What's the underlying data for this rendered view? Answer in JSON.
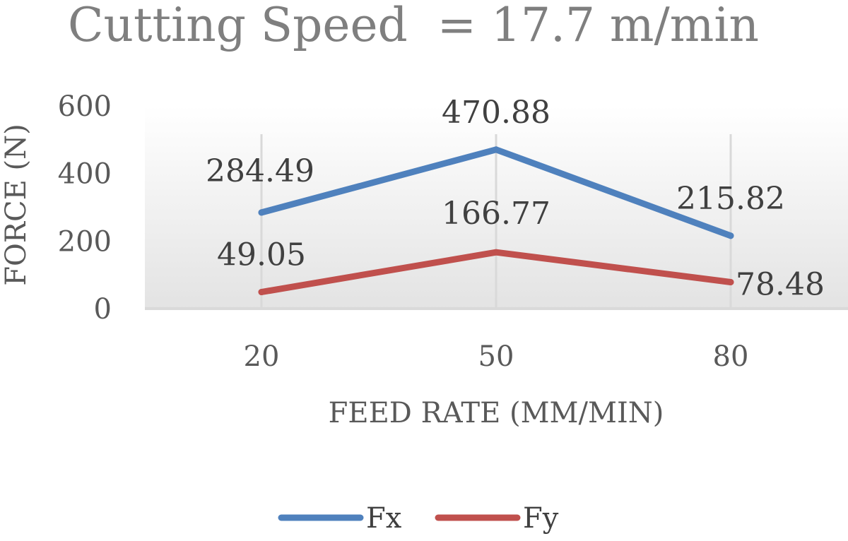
{
  "chart_data": {
    "type": "line",
    "title": "Cutting Speed  = 17.7 m/min",
    "xlabel": "FEED RATE (MM/MIN)",
    "ylabel": "FORCE (N)",
    "categories": [
      "20",
      "50",
      "80"
    ],
    "ylim": [
      0,
      600
    ],
    "yticks": [
      "0",
      "200",
      "400",
      "600"
    ],
    "grid": "vertical",
    "legend": "bottom",
    "series": [
      {
        "name": "Fx",
        "color": "#4f81bd",
        "values": [
          284.49,
          470.88,
          215.82
        ],
        "labels": [
          "284.49",
          "470.88",
          "215.82"
        ]
      },
      {
        "name": "Fy",
        "color": "#c0504d",
        "values": [
          49.05,
          166.77,
          78.48
        ],
        "labels": [
          "49.05",
          "166.77",
          "78.48"
        ]
      }
    ]
  }
}
